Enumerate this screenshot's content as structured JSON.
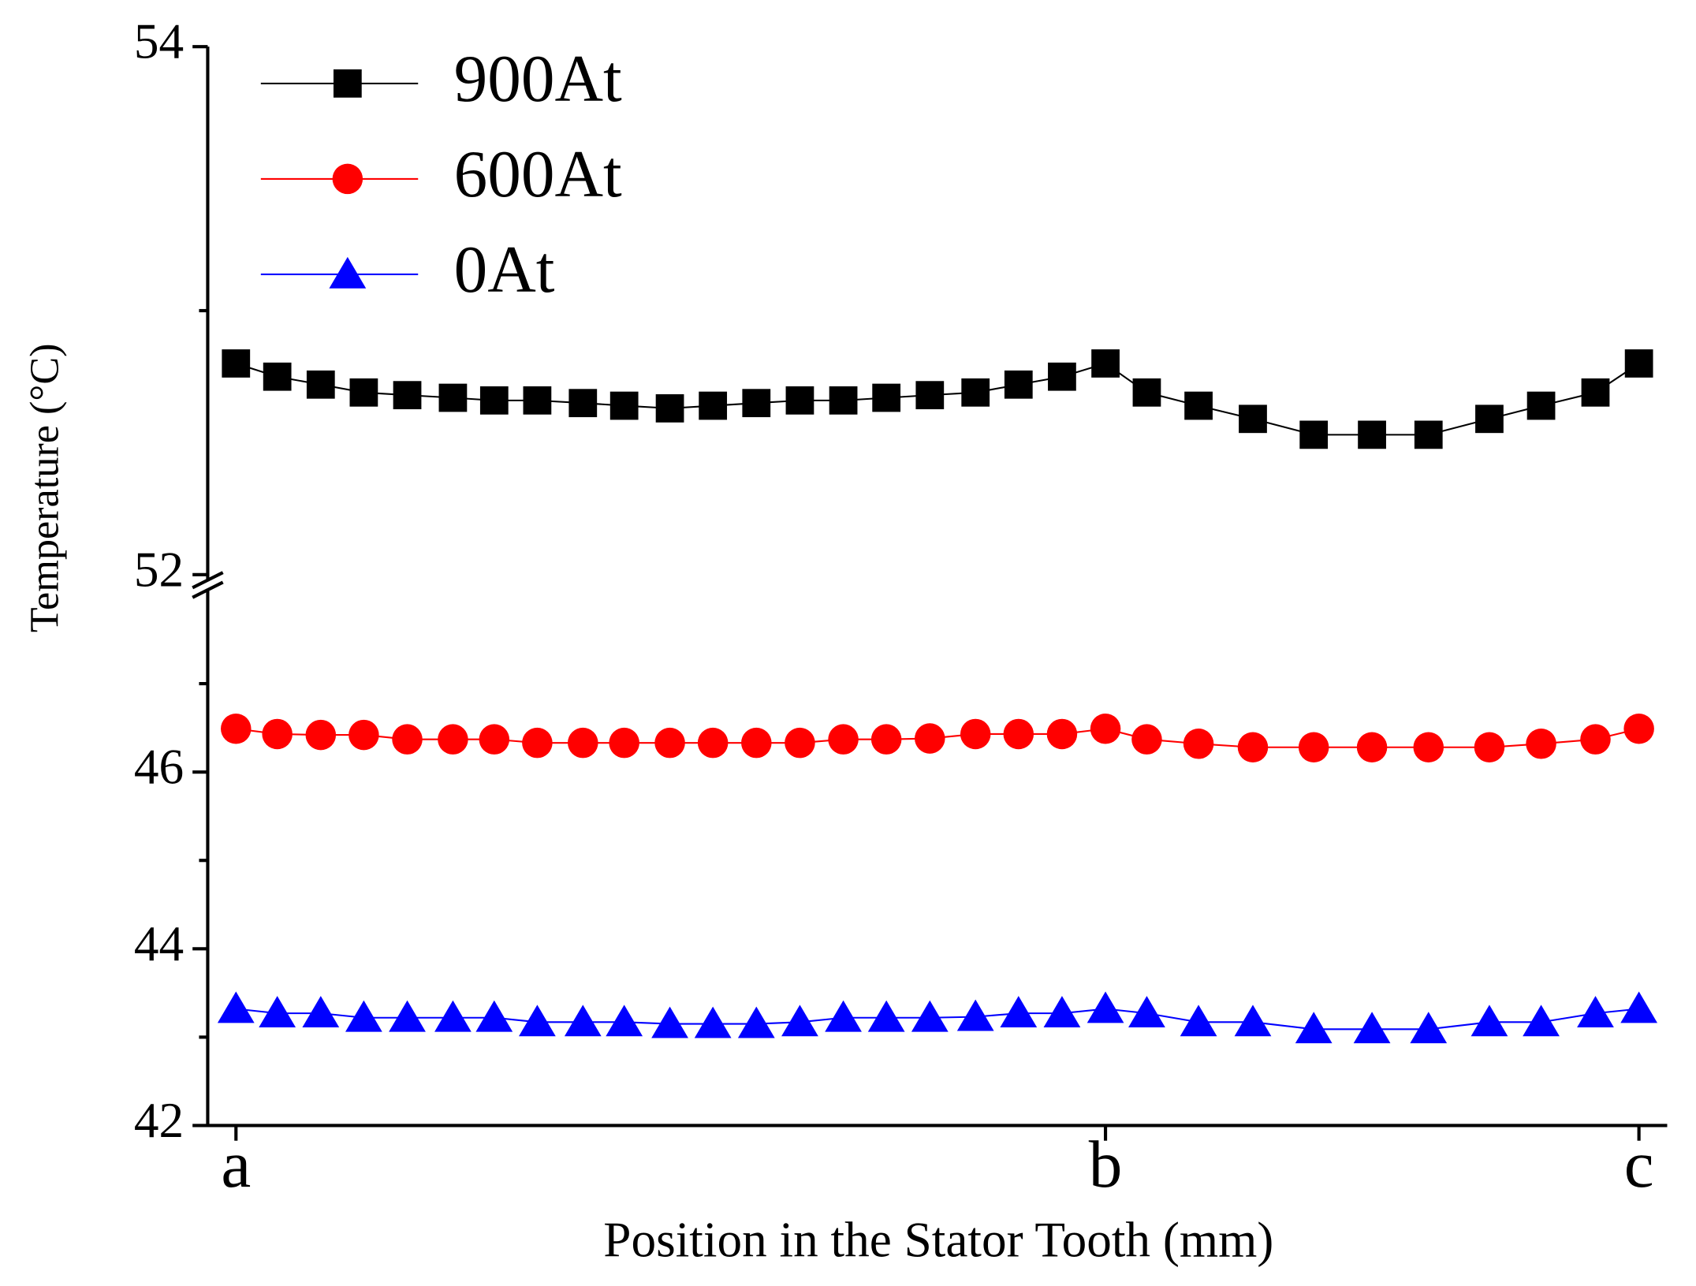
{
  "chart_data": {
    "type": "line",
    "x_label": "Position in the Stator Tooth (mm)",
    "y_label": "Temperature (°C)",
    "x": [
      0,
      0.95,
      1.95,
      2.94,
      3.94,
      4.99,
      5.94,
      6.93,
      7.98,
      8.93,
      9.98,
      10.97,
      11.97,
      12.97,
      13.97,
      14.96,
      15.96,
      17.01,
      18.0,
      19.0,
      20.0,
      20.95,
      22.14,
      23.39,
      24.79,
      26.13,
      27.43,
      28.83,
      30.02,
      31.27,
      32.27
    ],
    "series": [
      {
        "name": "900At",
        "color": "#000000",
        "marker": "square",
        "values": [
          52.8,
          52.75,
          52.72,
          52.69,
          52.68,
          52.67,
          52.66,
          52.66,
          52.65,
          52.64,
          52.63,
          52.64,
          52.65,
          52.66,
          52.66,
          52.67,
          52.68,
          52.69,
          52.72,
          52.75,
          52.8,
          52.69,
          52.64,
          52.59,
          52.53,
          52.53,
          52.53,
          52.59,
          52.64,
          52.69,
          52.8
        ]
      },
      {
        "name": "600At",
        "color": "#ff0000",
        "marker": "circle",
        "values": [
          46.49,
          46.43,
          46.42,
          46.42,
          46.37,
          46.37,
          46.37,
          46.33,
          46.33,
          46.33,
          46.33,
          46.33,
          46.33,
          46.33,
          46.37,
          46.37,
          46.38,
          46.43,
          46.43,
          46.43,
          46.49,
          46.37,
          46.32,
          46.28,
          46.28,
          46.28,
          46.28,
          46.28,
          46.32,
          46.37,
          46.49
        ]
      },
      {
        "name": "0At",
        "color": "#0000ff",
        "marker": "triangle",
        "values": [
          43.32,
          43.27,
          43.27,
          43.22,
          43.22,
          43.22,
          43.22,
          43.17,
          43.17,
          43.17,
          43.15,
          43.15,
          43.15,
          43.17,
          43.22,
          43.22,
          43.22,
          43.23,
          43.27,
          43.27,
          43.32,
          43.27,
          43.17,
          43.17,
          43.09,
          43.09,
          43.09,
          43.17,
          43.17,
          43.27,
          43.32
        ]
      }
    ],
    "xlim": [
      -0.65,
      32.92
    ],
    "xticks": [
      {
        "value": 0,
        "label": "a"
      },
      {
        "value": 20,
        "label": "b"
      },
      {
        "value": 32.27,
        "label": "c"
      }
    ],
    "ylim": [
      42,
      54
    ],
    "ybreak": [
      48,
      52
    ],
    "yticks": [
      42,
      44,
      46,
      52,
      54
    ],
    "yticks_minor": [
      43,
      45,
      47,
      53
    ],
    "legend": "upper left",
    "grid": false
  }
}
